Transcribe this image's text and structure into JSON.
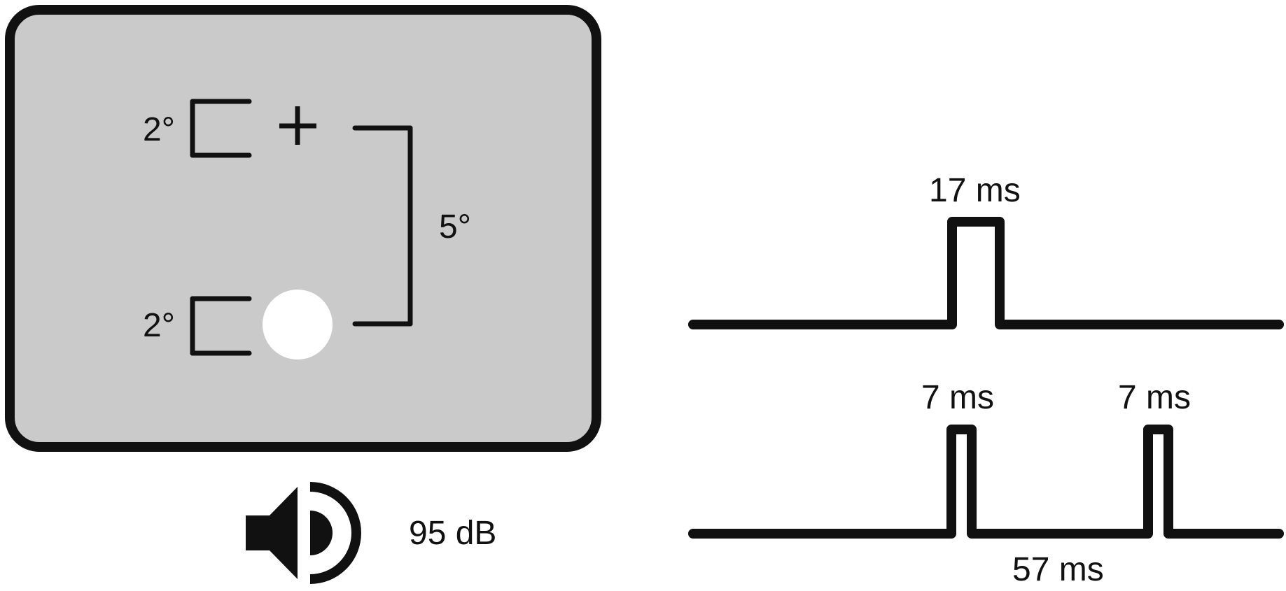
{
  "colors": {
    "screen_fill": "#cacaca",
    "stroke": "#111111",
    "stimulus": "#ffffff",
    "background": "#ffffff"
  },
  "display": {
    "fixation_size_label": "2°",
    "stimulus_size_label": "2°",
    "eccentricity_label": "5°",
    "fixation_symbol": "fixation-cross",
    "stimulus_symbol": "white-disk"
  },
  "audio": {
    "icon": "speaker-icon",
    "level_label": "95 dB"
  },
  "timing": {
    "single_pulse_label": "17 ms",
    "double_pulse_first_label": "7 ms",
    "double_pulse_second_label": "7 ms",
    "interval_label": "57 ms"
  }
}
